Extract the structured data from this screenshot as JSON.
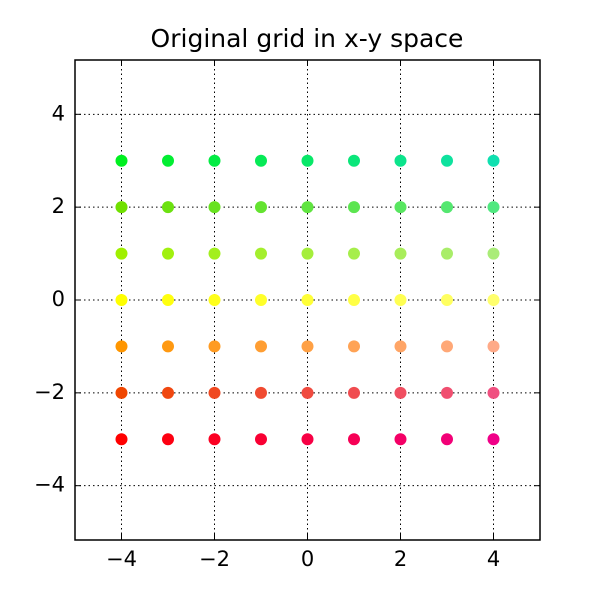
{
  "chart_data": {
    "type": "scatter",
    "title": "Original grid in x-y space",
    "x": [
      -4,
      -3,
      -2,
      -1,
      0,
      1,
      2,
      3,
      4,
      -4,
      -3,
      -2,
      -1,
      0,
      1,
      2,
      3,
      4,
      -4,
      -3,
      -2,
      -1,
      0,
      1,
      2,
      3,
      4,
      -4,
      -3,
      -2,
      -1,
      0,
      1,
      2,
      3,
      4,
      -4,
      -3,
      -2,
      -1,
      0,
      1,
      2,
      3,
      4,
      -4,
      -3,
      -2,
      -1,
      0,
      1,
      2,
      3,
      4,
      -4,
      -3,
      -2,
      -1,
      0,
      1,
      2,
      3,
      4
    ],
    "y": [
      3,
      3,
      3,
      3,
      3,
      3,
      3,
      3,
      3,
      2,
      2,
      2,
      2,
      2,
      2,
      2,
      2,
      2,
      1,
      1,
      1,
      1,
      1,
      1,
      1,
      1,
      1,
      0,
      0,
      0,
      0,
      0,
      0,
      0,
      0,
      0,
      -1,
      -1,
      -1,
      -1,
      -1,
      -1,
      -1,
      -1,
      -1,
      -2,
      -2,
      -2,
      -2,
      -2,
      -2,
      -2,
      -2,
      -2,
      -3,
      -3,
      -3,
      -3,
      -3,
      -3,
      -3,
      -3,
      -3
    ],
    "colors": [
      "#00f020",
      "#02ee32",
      "#04ec44",
      "#06ea56",
      "#08e868",
      "#0ae67a",
      "#0ce48c",
      "#0ee29e",
      "#10e0b0",
      "#70e000",
      "#6ce110",
      "#68e220",
      "#64e330",
      "#60e440",
      "#5ce550",
      "#58e660",
      "#54e770",
      "#50e880",
      "#a0f000",
      "#a1f00f",
      "#a3ef1e",
      "#a4ef2d",
      "#a5ee3c",
      "#a6ee4b",
      "#a8ed5a",
      "#a9ed69",
      "#aaec78",
      "#ffff00",
      "#ffff0e",
      "#ffff1c",
      "#ffff29",
      "#ffff37",
      "#ffff45",
      "#ffff52",
      "#ffff60",
      "#ffff6e",
      "#ff9600",
      "#ff9911",
      "#ff9b22",
      "#ff9e33",
      "#ffa044",
      "#ffa355",
      "#ffa566",
      "#ffa877",
      "#ffaa88",
      "#f04600",
      "#f04710",
      "#f04920",
      "#f04a30",
      "#f04b40",
      "#f04c50",
      "#f04e60",
      "#f04f70",
      "#f05080",
      "#ff0000",
      "#fd0011",
      "#fb0022",
      "#f90033",
      "#f70044",
      "#f60055",
      "#f40066",
      "#f20077",
      "#f00088"
    ],
    "xlim": [
      -5,
      5
    ],
    "ylim": [
      -5.17,
      5.17
    ],
    "xticks": [
      {
        "value": -4,
        "label": "−4"
      },
      {
        "value": -2,
        "label": "−2"
      },
      0,
      2,
      4
    ],
    "yticks": [
      {
        "value": -4,
        "label": "−4"
      },
      {
        "value": -2,
        "label": "−2"
      },
      0,
      2,
      4
    ],
    "grid": true
  }
}
